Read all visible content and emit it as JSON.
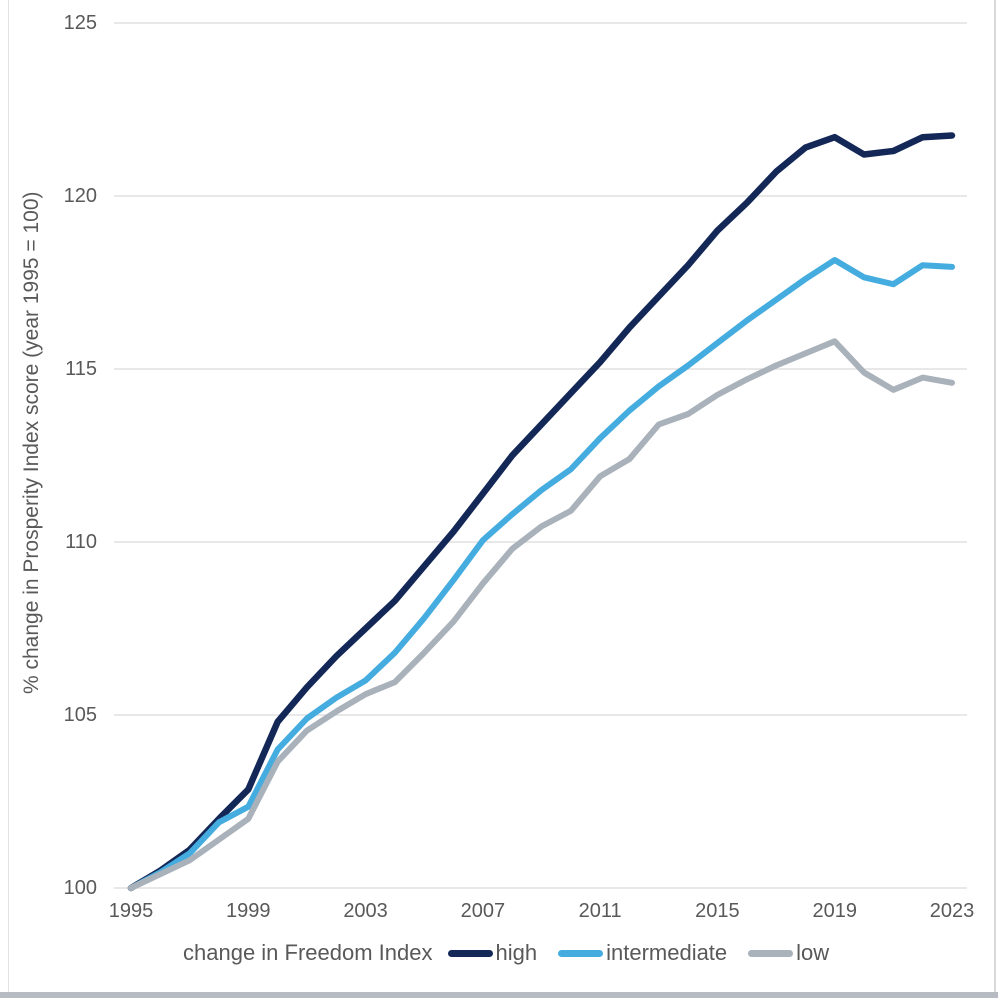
{
  "page": {
    "background": "#ffffff",
    "border_color": "#d9d9d9",
    "bottom_bar_color": "#b7bcc2",
    "text_color": "#595959"
  },
  "chart_data": {
    "type": "line",
    "title": "",
    "xlabel": "",
    "ylabel": "% change in Prosperity Index score (year 1995 = 100)",
    "x": [
      1995,
      1996,
      1997,
      1998,
      1999,
      2000,
      2001,
      2002,
      2003,
      2004,
      2005,
      2006,
      2007,
      2008,
      2009,
      2010,
      2011,
      2012,
      2013,
      2014,
      2015,
      2016,
      2017,
      2018,
      2019,
      2020,
      2021,
      2022,
      2023
    ],
    "x_tick_labels": [
      "1995",
      "1999",
      "2003",
      "2007",
      "2011",
      "2015",
      "2019",
      "2023"
    ],
    "x_tick_years": [
      1995,
      1999,
      2003,
      2007,
      2011,
      2015,
      2019,
      2023
    ],
    "y_ticks": [
      100,
      105,
      110,
      115,
      120,
      125
    ],
    "ylim": [
      100,
      125
    ],
    "xlim": [
      1995,
      2023
    ],
    "grid": "horizontal-only",
    "grid_color": "#d9d9d9",
    "legend_title": "change in Freedom Index",
    "legend_position": "bottom",
    "series": [
      {
        "name": "high",
        "color": "#142858",
        "stroke_width": 6.5,
        "values": [
          100,
          100.5,
          101.1,
          102.0,
          102.85,
          104.8,
          105.8,
          106.7,
          107.5,
          108.3,
          109.3,
          110.3,
          111.4,
          112.5,
          113.4,
          114.3,
          115.2,
          116.2,
          117.1,
          118.0,
          119.0,
          119.8,
          120.7,
          121.4,
          121.7,
          121.2,
          121.3,
          121.7,
          121.75
        ]
      },
      {
        "name": "intermediate",
        "color": "#45acdf",
        "stroke_width": 6,
        "values": [
          100,
          100.45,
          101.0,
          101.9,
          102.35,
          104.0,
          104.9,
          105.5,
          106.0,
          106.8,
          107.8,
          108.9,
          110.05,
          110.8,
          111.5,
          112.1,
          113.0,
          113.8,
          114.5,
          115.1,
          115.75,
          116.4,
          117.0,
          117.6,
          118.15,
          117.65,
          117.45,
          118.0,
          117.95
        ]
      },
      {
        "name": "low",
        "color": "#a9b1ba",
        "stroke_width": 6,
        "values": [
          100,
          100.4,
          100.8,
          101.4,
          102.0,
          103.65,
          104.55,
          105.1,
          105.6,
          105.95,
          106.8,
          107.7,
          108.8,
          109.8,
          110.45,
          110.9,
          111.9,
          112.4,
          113.4,
          113.7,
          114.25,
          114.7,
          115.1,
          115.45,
          115.8,
          114.9,
          114.4,
          114.75,
          114.6
        ]
      }
    ]
  }
}
